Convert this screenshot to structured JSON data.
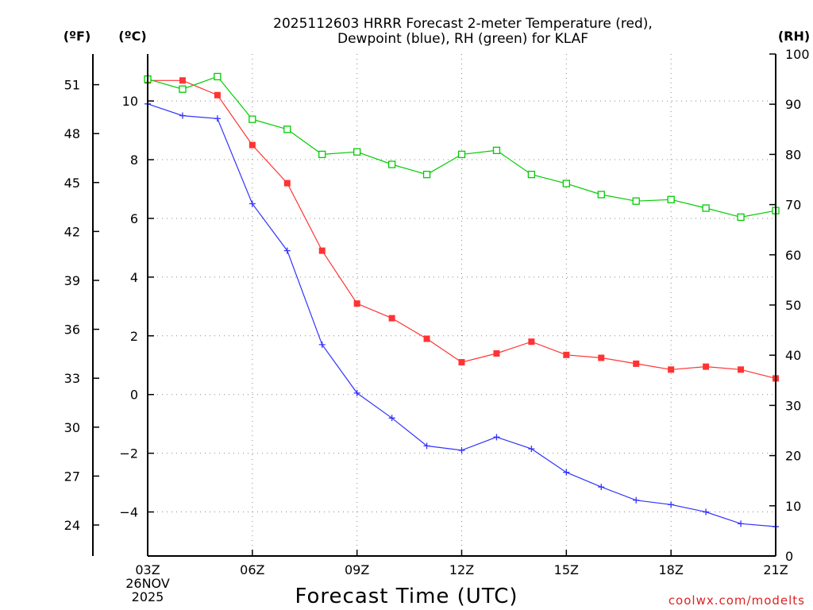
{
  "chart_data": {
    "type": "line",
    "title_line1": "2025112603 HRRR Forecast 2-meter Temperature (red),",
    "title_line2": "Dewpoint (blue), RH (green) for KLAF",
    "xlabel": "Forecast Time (UTC)",
    "unit_f": "(ºF)",
    "unit_c": "(ºC)",
    "unit_rh": "(RH)",
    "x_hours": [
      3,
      4,
      5,
      6,
      7,
      8,
      9,
      10,
      11,
      12,
      13,
      14,
      15,
      16,
      17,
      18,
      19,
      20,
      21
    ],
    "x_ticks": [
      {
        "hour": 3,
        "label": "03Z"
      },
      {
        "hour": 6,
        "label": "06Z"
      },
      {
        "hour": 9,
        "label": "09Z"
      },
      {
        "hour": 12,
        "label": "12Z"
      },
      {
        "hour": 15,
        "label": "15Z"
      },
      {
        "hour": 18,
        "label": "18Z"
      },
      {
        "hour": 21,
        "label": "21Z"
      }
    ],
    "date_line1": "26NOV",
    "date_line2": "2025",
    "credit": "coolwx.com/modelts",
    "xlim": [
      3,
      21
    ],
    "ylim_c": [
      -5.5,
      11.6
    ],
    "ylim_rh": [
      0,
      100
    ],
    "yticks_c": [
      {
        "v": -4,
        "label": "−4"
      },
      {
        "v": -2,
        "label": "−2"
      },
      {
        "v": 0,
        "label": "0"
      },
      {
        "v": 2,
        "label": "2"
      },
      {
        "v": 4,
        "label": "4"
      },
      {
        "v": 6,
        "label": "6"
      },
      {
        "v": 8,
        "label": "8"
      },
      {
        "v": 10,
        "label": "10"
      }
    ],
    "yticks_f": [
      24,
      27,
      30,
      33,
      36,
      39,
      42,
      45,
      48,
      51
    ],
    "yticks_rh": [
      0,
      10,
      20,
      30,
      40,
      50,
      60,
      70,
      80,
      90,
      100
    ],
    "series": [
      {
        "name": "Temperature",
        "color": "#ff3333",
        "marker": "filled-square",
        "axis": "c",
        "values": [
          10.7,
          10.7,
          10.2,
          8.5,
          7.2,
          4.9,
          3.1,
          2.6,
          1.9,
          1.1,
          1.4,
          1.8,
          1.35,
          1.25,
          1.05,
          0.85,
          0.95,
          0.85,
          0.55
        ]
      },
      {
        "name": "Dewpoint",
        "color": "#3333ff",
        "marker": "plus",
        "axis": "c",
        "values": [
          9.9,
          9.5,
          9.4,
          6.5,
          4.9,
          1.7,
          0.05,
          -0.8,
          -1.75,
          -1.9,
          -1.45,
          -1.85,
          -2.65,
          -3.15,
          -3.6,
          -3.75,
          -4.0,
          -4.4,
          -4.5
        ]
      },
      {
        "name": "RH",
        "color": "#00cc00",
        "marker": "open-square",
        "axis": "rh",
        "values": [
          95,
          93,
          95.5,
          87,
          85,
          80,
          80.5,
          78,
          76,
          80,
          80.8,
          76,
          74.2,
          72,
          70.7,
          71,
          69.3,
          67.5,
          68.8
        ]
      }
    ]
  }
}
